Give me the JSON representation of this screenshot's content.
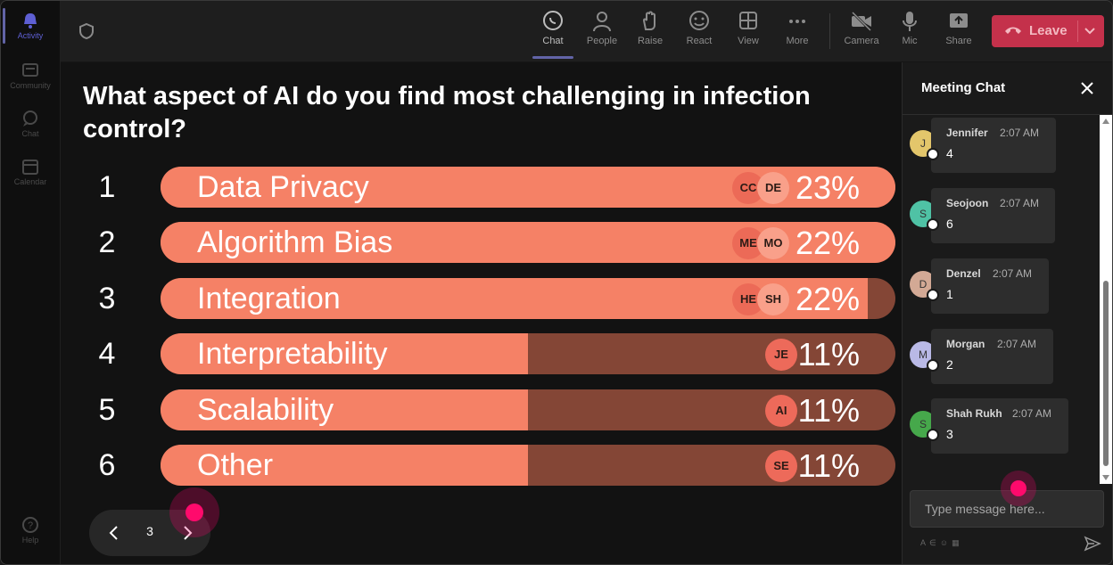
{
  "rail": {
    "items": [
      {
        "label": "Activity",
        "icon": "bell-icon"
      },
      {
        "label": "Community",
        "icon": "community-icon"
      },
      {
        "label": "Chat",
        "icon": "chat-icon"
      },
      {
        "label": "Calendar",
        "icon": "calendar-icon"
      }
    ],
    "help_label": "Help"
  },
  "toolbar": {
    "buttons": [
      {
        "label": "Chat",
        "icon": "chat-bubble-icon",
        "active": true
      },
      {
        "label": "People",
        "icon": "people-icon"
      },
      {
        "label": "Raise",
        "icon": "hand-icon"
      },
      {
        "label": "React",
        "icon": "smiley-icon"
      },
      {
        "label": "View",
        "icon": "grid-icon"
      },
      {
        "label": "More",
        "icon": "more-icon"
      },
      {
        "label": "Camera",
        "icon": "camera-off-icon"
      },
      {
        "label": "Mic",
        "icon": "mic-icon"
      },
      {
        "label": "Share",
        "icon": "share-icon"
      }
    ],
    "leave_label": "Leave"
  },
  "poll": {
    "question": "What aspect of AI do you find most challenging in infection control?",
    "options": [
      {
        "num": "1",
        "label": "Data Privacy",
        "percent": "23%",
        "fill": 1.0,
        "avatars": [
          "CC",
          "DE"
        ]
      },
      {
        "num": "2",
        "label": "Algorithm Bias",
        "percent": "22%",
        "fill": 1.0,
        "avatars": [
          "ME",
          "MO"
        ]
      },
      {
        "num": "3",
        "label": "Integration",
        "percent": "22%",
        "fill": 0.962,
        "avatars": [
          "HE",
          "SH"
        ]
      },
      {
        "num": "4",
        "label": "Interpretability",
        "percent": "11%",
        "fill": 0.5,
        "avatars": [
          "JE"
        ]
      },
      {
        "num": "5",
        "label": "Scalability",
        "percent": "11%",
        "fill": 0.5,
        "avatars": [
          "AI"
        ]
      },
      {
        "num": "6",
        "label": "Other",
        "percent": "11%",
        "fill": 0.5,
        "avatars": [
          "SE"
        ]
      }
    ]
  },
  "pager": {
    "page": "3"
  },
  "chat": {
    "title": "Meeting Chat",
    "messages": [
      {
        "initial": "J",
        "name": "Jennifer",
        "time": "2:07 AM",
        "text": "4",
        "color": "#e3c66b"
      },
      {
        "initial": "S",
        "name": "Seojoon",
        "time": "2:07 AM",
        "text": "6",
        "color": "#4fc2a5"
      },
      {
        "initial": "D",
        "name": "Denzel",
        "time": "2:07 AM",
        "text": "1",
        "color": "#d3a995"
      },
      {
        "initial": "M",
        "name": "Morgan",
        "time": "2:07 AM",
        "text": "2",
        "color": "#b9b9e6"
      },
      {
        "initial": "S",
        "name": "Shah Rukh",
        "time": "2:07 AM",
        "text": "3",
        "color": "#46a84b"
      }
    ],
    "input_placeholder": "Type message here..."
  },
  "colors": {
    "bar_fill": "#f58166",
    "bar_track": "#844636",
    "leave": "#c4314b",
    "accent": "#6264a7",
    "cursor": "#ff0a6c"
  }
}
